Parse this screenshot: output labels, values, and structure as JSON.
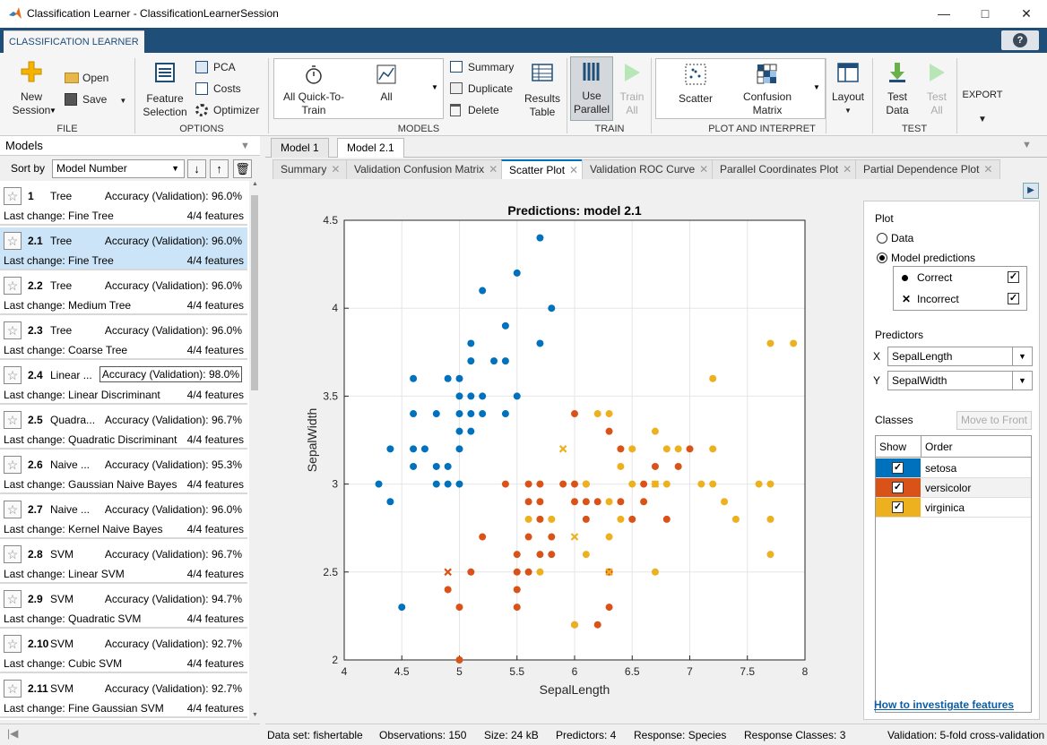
{
  "window": {
    "title": "Classification Learner - ClassificationLearnerSession"
  },
  "ribbon": {
    "tab": "CLASSIFICATION LEARNER",
    "file": {
      "new_session": "New Session",
      "open": "Open",
      "save": "Save",
      "group": "FILE"
    },
    "options": {
      "feature_selection": "Feature Selection",
      "pca": "PCA",
      "costs": "Costs",
      "optimizer": "Optimizer",
      "group": "OPTIONS"
    },
    "models": {
      "all_quick": "All Quick-To-Train",
      "all": "All",
      "summary": "Summary",
      "duplicate": "Duplicate",
      "delete": "Delete",
      "results_table": "Results Table",
      "group": "MODELS"
    },
    "train": {
      "use_parallel": "Use Parallel",
      "train_all": "Train All",
      "group": "TRAIN"
    },
    "plot": {
      "scatter": "Scatter",
      "confusion": "Confusion Matrix",
      "group": "PLOT AND INTERPRET"
    },
    "layout": "Layout",
    "test": {
      "test_data": "Test Data",
      "test_all": "Test All",
      "group": "TEST"
    },
    "export": "EXPORT"
  },
  "models_panel": {
    "title": "Models",
    "sort_label": "Sort by",
    "sort_value": "Model Number",
    "models": [
      {
        "num": "1",
        "type": "Tree",
        "acc": "Accuracy (Validation): 96.0%",
        "change": "Last change: Fine Tree",
        "features": "4/4 features"
      },
      {
        "num": "2.1",
        "type": "Tree",
        "acc": "Accuracy (Validation): 96.0%",
        "change": "Last change: Fine Tree",
        "features": "4/4 features"
      },
      {
        "num": "2.2",
        "type": "Tree",
        "acc": "Accuracy (Validation): 96.0%",
        "change": "Last change: Medium Tree",
        "features": "4/4 features"
      },
      {
        "num": "2.3",
        "type": "Tree",
        "acc": "Accuracy (Validation): 96.0%",
        "change": "Last change: Coarse Tree",
        "features": "4/4 features"
      },
      {
        "num": "2.4",
        "type": "Linear ...",
        "acc": "Accuracy (Validation): 98.0%",
        "change": "Last change: Linear Discriminant",
        "features": "4/4 features"
      },
      {
        "num": "2.5",
        "type": "Quadra...",
        "acc": "Accuracy (Validation): 96.7%",
        "change": "Last change: Quadratic Discriminant",
        "features": "4/4 features"
      },
      {
        "num": "2.6",
        "type": "Naive ...",
        "acc": "Accuracy (Validation): 95.3%",
        "change": "Last change: Gaussian Naive Bayes",
        "features": "4/4 features"
      },
      {
        "num": "2.7",
        "type": "Naive ...",
        "acc": "Accuracy (Validation): 96.0%",
        "change": "Last change: Kernel Naive Bayes",
        "features": "4/4 features"
      },
      {
        "num": "2.8",
        "type": "SVM",
        "acc": "Accuracy (Validation): 96.7%",
        "change": "Last change: Linear SVM",
        "features": "4/4 features"
      },
      {
        "num": "2.9",
        "type": "SVM",
        "acc": "Accuracy (Validation): 94.7%",
        "change": "Last change: Quadratic SVM",
        "features": "4/4 features"
      },
      {
        "num": "2.10",
        "type": "SVM",
        "acc": "Accuracy (Validation): 92.7%",
        "change": "Last change: Cubic SVM",
        "features": "4/4 features"
      },
      {
        "num": "2.11",
        "type": "SVM",
        "acc": "Accuracy (Validation): 92.7%",
        "change": "Last change: Fine Gaussian SVM",
        "features": "4/4 features"
      }
    ]
  },
  "doc_tabs": [
    "Model 1",
    "Model 2.1"
  ],
  "plot_tabs": [
    "Summary",
    "Validation Confusion Matrix",
    "Scatter Plot",
    "Validation ROC Curve",
    "Parallel Coordinates Plot",
    "Partial Dependence Plot"
  ],
  "side": {
    "plot_title": "Plot",
    "data": "Data",
    "model_predictions": "Model predictions",
    "correct": "Correct",
    "incorrect": "Incorrect",
    "predictors_title": "Predictors",
    "x_label": "X",
    "x_value": "SepalLength",
    "y_label": "Y",
    "y_value": "SepalWidth",
    "classes_title": "Classes",
    "move_to_front": "Move to Front",
    "show_col": "Show",
    "order_col": "Order",
    "classes": [
      "setosa",
      "versicolor",
      "virginica"
    ],
    "link": "How to investigate features"
  },
  "colors": {
    "setosa": "#0072bd",
    "versicolor": "#d95319",
    "virginica": "#edb120"
  },
  "status": {
    "dataset": "Data set: fishertable",
    "obs": "Observations: 150",
    "size": "Size: 24 kB",
    "pred": "Predictors: 4",
    "resp": "Response: Species",
    "classes": "Response Classes: 3",
    "val": "Validation: 5-fold cross-validation"
  },
  "chart_data": {
    "type": "scatter",
    "title": "Predictions: model 2.1",
    "xlabel": "SepalLength",
    "ylabel": "SepalWidth",
    "xlim": [
      4,
      8
    ],
    "ylim": [
      2,
      4.5
    ],
    "xticks": [
      "4",
      "4.5",
      "5",
      "5.5",
      "6",
      "6.5",
      "7",
      "7.5",
      "8"
    ],
    "yticks": [
      "2",
      "2.5",
      "3",
      "3.5",
      "4",
      "4.5"
    ],
    "grid": true,
    "series": [
      {
        "name": "setosa",
        "correct": [
          [
            4.3,
            3.0
          ],
          [
            4.4,
            2.9
          ],
          [
            4.4,
            3.2
          ],
          [
            4.5,
            2.3
          ],
          [
            4.6,
            3.1
          ],
          [
            4.6,
            3.2
          ],
          [
            4.6,
            3.4
          ],
          [
            4.6,
            3.6
          ],
          [
            4.7,
            3.2
          ],
          [
            4.8,
            3.0
          ],
          [
            4.8,
            3.1
          ],
          [
            4.8,
            3.4
          ],
          [
            4.9,
            3.0
          ],
          [
            4.9,
            3.1
          ],
          [
            4.9,
            3.6
          ],
          [
            5.0,
            3.0
          ],
          [
            5.0,
            3.2
          ],
          [
            5.0,
            3.3
          ],
          [
            5.0,
            3.4
          ],
          [
            5.0,
            3.5
          ],
          [
            5.0,
            3.6
          ],
          [
            5.1,
            3.3
          ],
          [
            5.1,
            3.4
          ],
          [
            5.1,
            3.5
          ],
          [
            5.1,
            3.7
          ],
          [
            5.1,
            3.8
          ],
          [
            5.2,
            3.4
          ],
          [
            5.2,
            3.5
          ],
          [
            5.2,
            4.1
          ],
          [
            5.3,
            3.7
          ],
          [
            5.4,
            3.4
          ],
          [
            5.4,
            3.7
          ],
          [
            5.4,
            3.9
          ],
          [
            5.5,
            3.5
          ],
          [
            5.5,
            4.2
          ],
          [
            5.7,
            3.8
          ],
          [
            5.7,
            4.4
          ],
          [
            5.8,
            4.0
          ]
        ],
        "incorrect": []
      },
      {
        "name": "versicolor",
        "correct": [
          [
            4.9,
            2.4
          ],
          [
            5.0,
            2.0
          ],
          [
            5.0,
            2.3
          ],
          [
            5.1,
            2.5
          ],
          [
            5.2,
            2.7
          ],
          [
            5.5,
            2.3
          ],
          [
            5.5,
            2.4
          ],
          [
            5.5,
            2.5
          ],
          [
            5.5,
            2.6
          ],
          [
            5.6,
            2.5
          ],
          [
            5.6,
            2.7
          ],
          [
            5.6,
            2.9
          ],
          [
            5.6,
            3.0
          ],
          [
            5.7,
            2.6
          ],
          [
            5.7,
            2.8
          ],
          [
            5.7,
            2.9
          ],
          [
            5.7,
            3.0
          ],
          [
            5.8,
            2.6
          ],
          [
            5.8,
            2.7
          ],
          [
            5.9,
            3.0
          ],
          [
            6.0,
            2.2
          ],
          [
            6.0,
            2.9
          ],
          [
            6.0,
            3.4
          ],
          [
            6.1,
            2.8
          ],
          [
            6.1,
            2.9
          ],
          [
            6.1,
            3.0
          ],
          [
            6.2,
            2.2
          ],
          [
            6.2,
            2.9
          ],
          [
            6.3,
            2.3
          ],
          [
            6.3,
            2.5
          ],
          [
            6.3,
            3.3
          ],
          [
            6.4,
            2.9
          ],
          [
            6.4,
            3.2
          ],
          [
            6.5,
            2.8
          ],
          [
            6.6,
            2.9
          ],
          [
            6.6,
            3.0
          ],
          [
            6.7,
            3.1
          ],
          [
            6.8,
            2.8
          ],
          [
            6.9,
            3.1
          ],
          [
            7.0,
            3.2
          ],
          [
            5.4,
            3.0
          ],
          [
            6.0,
            3.0
          ]
        ],
        "incorrect": [
          [
            4.9,
            2.5
          ]
        ]
      },
      {
        "name": "virginica",
        "correct": [
          [
            5.6,
            2.8
          ],
          [
            5.7,
            2.5
          ],
          [
            5.8,
            2.8
          ],
          [
            6.1,
            2.6
          ],
          [
            6.2,
            3.4
          ],
          [
            6.3,
            2.7
          ],
          [
            6.3,
            2.9
          ],
          [
            6.3,
            3.4
          ],
          [
            6.4,
            2.8
          ],
          [
            6.4,
            3.1
          ],
          [
            6.5,
            3.0
          ],
          [
            6.5,
            3.2
          ],
          [
            6.7,
            2.5
          ],
          [
            6.7,
            3.0
          ],
          [
            6.7,
            3.3
          ],
          [
            6.8,
            3.0
          ],
          [
            6.8,
            3.2
          ],
          [
            6.9,
            3.2
          ],
          [
            7.1,
            3.0
          ],
          [
            7.2,
            3.0
          ],
          [
            7.2,
            3.2
          ],
          [
            7.2,
            3.6
          ],
          [
            7.3,
            2.9
          ],
          [
            7.4,
            2.8
          ],
          [
            7.6,
            3.0
          ],
          [
            7.7,
            2.6
          ],
          [
            7.7,
            2.8
          ],
          [
            7.7,
            3.0
          ],
          [
            7.7,
            3.8
          ],
          [
            7.9,
            3.8
          ],
          [
            6.0,
            2.2
          ],
          [
            6.1,
            3.0
          ]
        ],
        "incorrect": [
          [
            5.9,
            3.2
          ],
          [
            6.0,
            2.7
          ],
          [
            6.3,
            2.5
          ],
          [
            6.7,
            3.0
          ]
        ]
      }
    ]
  }
}
